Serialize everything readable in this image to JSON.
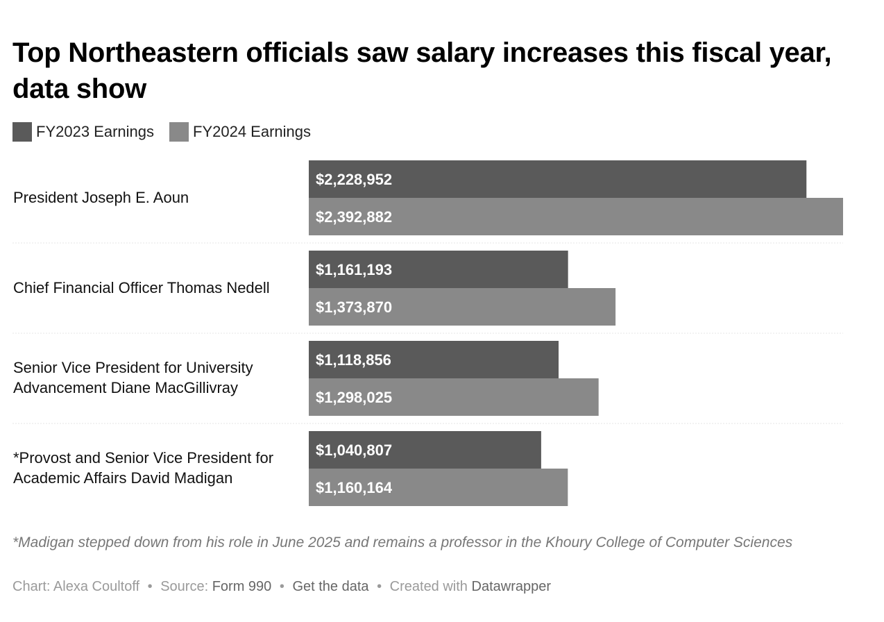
{
  "title": "Top Northeastern officials saw salary increases this fiscal year, data show",
  "chart_data": {
    "type": "bar",
    "orientation": "horizontal",
    "grouped": true,
    "categories": [
      "President Joseph E. Aoun",
      "Chief Financial Officer Thomas Nedell",
      "Senior Vice President for University Advancement Diane MacGillivray",
      "*Provost and Senior Vice President for Academic Affairs David Madigan"
    ],
    "series": [
      {
        "name": "FY2023 Earnings",
        "color": "#5a5a5a",
        "values": [
          2228952,
          1161193,
          1118856,
          1040807
        ],
        "labels": [
          "$2,228,952",
          "$1,161,193",
          "$1,118,856",
          "$1,040,807"
        ]
      },
      {
        "name": "FY2024 Earnings",
        "color": "#898989",
        "values": [
          2392882,
          1373870,
          1298025,
          1160164
        ],
        "labels": [
          "$2,392,882",
          "$1,373,870",
          "$1,298,025",
          "$1,160,164"
        ]
      }
    ],
    "xlim": [
      0,
      2392882
    ],
    "legend_position": "top-left",
    "grid": false
  },
  "footnote": "*Madigan stepped down from his role in June 2025 and remains a professor in the Khoury College of Computer Sciences",
  "credits": {
    "chart_prefix": "Chart: Alexa Coultoff",
    "source_prefix": "Source: ",
    "source_name": "Form 990",
    "get_data": "Get the data",
    "created_with": "Created with ",
    "tool": "Datawrapper",
    "separator": "•"
  }
}
